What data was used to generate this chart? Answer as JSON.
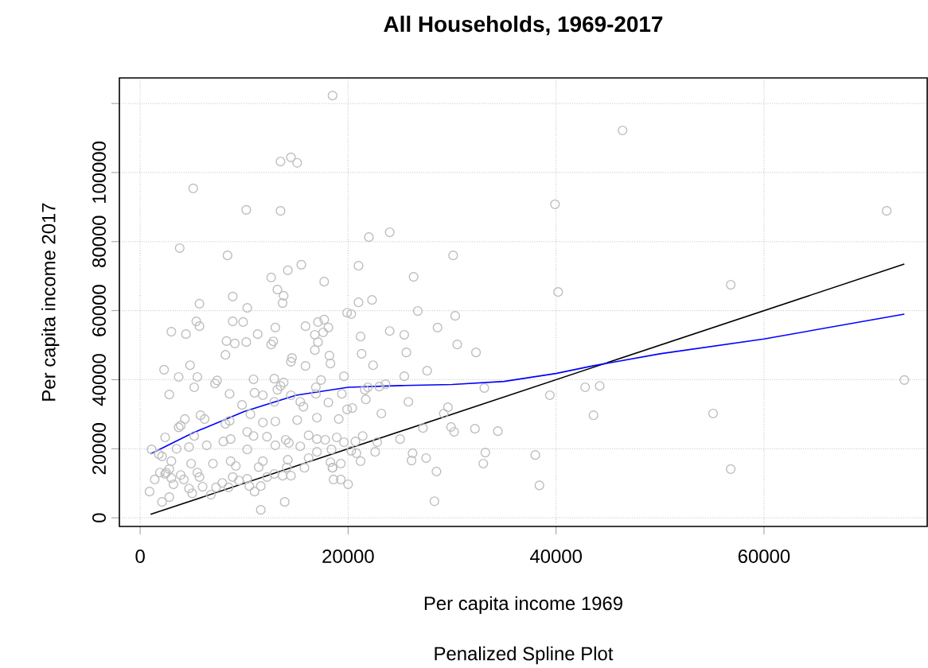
{
  "chart_data": {
    "type": "scatter",
    "title": "All Households, 1969-2017",
    "subtitle": "Penalized Spline Plot",
    "xlabel": "Per capita income 1969",
    "ylabel": "Per capita income 2017",
    "xlim": [
      -2000,
      75700
    ],
    "ylim": [
      -2500,
      127400
    ],
    "xticks": [
      0,
      20000,
      40000,
      60000
    ],
    "yticks": [
      0,
      20000,
      40000,
      60000,
      80000,
      100000,
      {
        "value": 120000,
        "label": null
      }
    ],
    "grid": true,
    "marker": "circle",
    "series": [
      {
        "color": "#bebebe",
        "x": [
          18500,
          46400,
          14500,
          13500,
          15100,
          5100,
          39900,
          10200,
          13500,
          71800,
          24000,
          22000,
          3800,
          8400,
          30100,
          21000,
          15500,
          14200,
          12600,
          26300,
          17700,
          56800,
          13200,
          40200,
          8900,
          13800,
          13700,
          5700,
          22300,
          21000,
          10300,
          19900,
          20300,
          26700,
          30300,
          5400,
          8900,
          9900,
          17700,
          17100,
          5700,
          3000,
          4400,
          24000,
          28600,
          11300,
          18100,
          17600,
          15900,
          13000,
          16800,
          25400,
          21200,
          30500,
          9100,
          10200,
          8300,
          12600,
          12800,
          17100,
          16800,
          18200,
          14600,
          14500,
          21300,
          25600,
          32300,
          8200,
          4800,
          15900,
          18300,
          22400,
          2300,
          27600,
          3700,
          10900,
          19600,
          25400,
          12900,
          5500,
          5200,
          7200,
          7400,
          13800,
          17400,
          21600,
          21900,
          23000,
          23600,
          33100,
          42800,
          44200,
          2800,
          8600,
          11000,
          11800,
          13200,
          13500,
          14500,
          16900,
          16900,
          19400,
          73500,
          39400,
          21700,
          25800,
          9800,
          12900,
          15400,
          15700,
          18100,
          20400,
          19900,
          29600,
          29200,
          23200,
          43600,
          55100,
          4300,
          3900,
          3700,
          5800,
          6200,
          10600,
          11800,
          13000,
          15100,
          17000,
          19100,
          27200,
          29900,
          30200,
          32200,
          34400,
          25000,
          8600,
          8200,
          5200,
          1100,
          2400,
          3500,
          4700,
          6400,
          8000,
          8700,
          10300,
          10900,
          12200,
          14000,
          14300,
          16200,
          17000,
          17800,
          18900,
          19600,
          20700,
          21400,
          22800,
          10300,
          13000,
          15400,
          17000,
          18400,
          20300,
          21200,
          20800,
          22600,
          26200,
          26100,
          27500,
          33200,
          33000,
          38000,
          1800,
          2100,
          3000,
          2800,
          2400,
          4900,
          7000,
          8700,
          9200,
          11800,
          11400,
          14200,
          14100,
          16200,
          15800,
          18300,
          18500,
          19300,
          900,
          1400,
          1900,
          2500,
          3000,
          3200,
          3900,
          4200,
          4700,
          5000,
          5700,
          5500,
          6000,
          6800,
          7300,
          7900,
          8500,
          8900,
          9500,
          10300,
          10500,
          11000,
          11600,
          12200,
          12900,
          13700,
          14500,
          13900,
          11600,
          18600,
          19300,
          20000,
          18500,
          28500,
          28300,
          38400,
          56800,
          2100,
          2800
        ],
        "values": [
          122300,
          112200,
          104400,
          103200,
          102800,
          95400,
          90800,
          89200,
          88900,
          88900,
          82700,
          81300,
          78100,
          76000,
          76000,
          73000,
          73300,
          71700,
          69600,
          69800,
          68400,
          67500,
          66100,
          65400,
          64100,
          64300,
          62200,
          62000,
          63100,
          62400,
          60800,
          59400,
          59000,
          59900,
          58500,
          56900,
          56900,
          56700,
          57400,
          56700,
          55500,
          53900,
          53200,
          54100,
          55100,
          53200,
          55100,
          53700,
          55500,
          55100,
          53000,
          53000,
          52500,
          50200,
          50500,
          50900,
          51200,
          50200,
          51100,
          50900,
          48600,
          47000,
          46300,
          45200,
          47500,
          47900,
          47900,
          47200,
          44200,
          44000,
          44700,
          44200,
          42900,
          42600,
          40800,
          40100,
          41000,
          41000,
          40300,
          40800,
          37800,
          38900,
          39800,
          39200,
          39900,
          37100,
          37800,
          38000,
          38700,
          37600,
          37800,
          38200,
          35700,
          35900,
          36200,
          35500,
          37100,
          38200,
          35500,
          37800,
          35900,
          35900,
          39900,
          35500,
          34300,
          33600,
          32700,
          33600,
          33600,
          32200,
          33400,
          31800,
          31400,
          32000,
          30200,
          30200,
          29700,
          30200,
          28600,
          26700,
          26200,
          29700,
          28600,
          30000,
          27600,
          27900,
          28300,
          29000,
          28600,
          26000,
          26300,
          24900,
          25800,
          25100,
          22800,
          28100,
          27200,
          23700,
          19800,
          23300,
          20000,
          20500,
          21000,
          22100,
          22800,
          24900,
          23700,
          23500,
          22600,
          21700,
          23900,
          22800,
          22600,
          23300,
          21900,
          22100,
          23700,
          21900,
          19800,
          21000,
          20700,
          19100,
          19800,
          19400,
          16400,
          18700,
          19100,
          18700,
          16600,
          17300,
          18900,
          15700,
          18200,
          18400,
          17800,
          16400,
          14100,
          12700,
          15700,
          15700,
          16400,
          15000,
          16400,
          14700,
          16800,
          14600,
          17300,
          14500,
          16100,
          14500,
          15700,
          7600,
          11100,
          13100,
          13100,
          11500,
          9700,
          12400,
          11100,
          8500,
          7100,
          11800,
          13100,
          9000,
          6700,
          8800,
          10100,
          8800,
          11800,
          10800,
          11300,
          9200,
          7600,
          9200,
          11800,
          12700,
          12200,
          12200,
          4600,
          2300,
          11100,
          11100,
          9700,
          14500,
          13400,
          4800,
          9400,
          14100,
          4600,
          6000
        ]
      },
      {
        "type": "line",
        "color": "#000000",
        "marker": "none",
        "x": [
          1000,
          73500
        ],
        "values": [
          1000,
          73500
        ]
      },
      {
        "type": "line",
        "color": "#0000ff",
        "marker": "none",
        "x": [
          1000,
          5000,
          10000,
          15000,
          20000,
          25000,
          30000,
          35000,
          40000,
          43500,
          50000,
          60000,
          73500
        ],
        "values": [
          18500,
          24500,
          30800,
          35500,
          37800,
          38300,
          38600,
          39500,
          41800,
          44000,
          47500,
          51800,
          59000
        ]
      }
    ]
  }
}
